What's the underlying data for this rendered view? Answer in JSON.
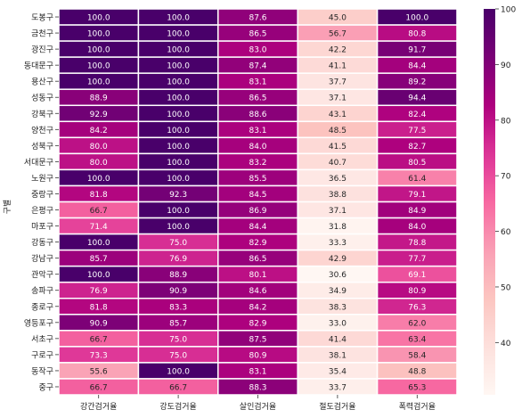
{
  "chart_data": {
    "type": "heatmap",
    "title": "",
    "xlabel": "",
    "ylabel": "구별",
    "columns": [
      "강간검거율",
      "강도검거율",
      "살인검거율",
      "절도검거율",
      "폭력검거율"
    ],
    "rows": [
      "도봉구",
      "금천구",
      "광진구",
      "동대문구",
      "용산구",
      "성동구",
      "강북구",
      "양천구",
      "성북구",
      "서대문구",
      "노원구",
      "중랑구",
      "은평구",
      "마포구",
      "강동구",
      "강남구",
      "관악구",
      "송파구",
      "종로구",
      "영등포구",
      "서초구",
      "구로구",
      "동작구",
      "중구"
    ],
    "values": [
      [
        100.0,
        100.0,
        87.6,
        45.0,
        100.0
      ],
      [
        100.0,
        100.0,
        86.5,
        56.7,
        80.8
      ],
      [
        100.0,
        100.0,
        83.0,
        42.2,
        91.7
      ],
      [
        100.0,
        100.0,
        87.4,
        41.1,
        84.4
      ],
      [
        100.0,
        100.0,
        83.1,
        37.7,
        89.2
      ],
      [
        88.9,
        100.0,
        86.5,
        37.1,
        94.4
      ],
      [
        92.9,
        100.0,
        88.6,
        43.1,
        82.4
      ],
      [
        84.2,
        100.0,
        83.1,
        48.5,
        77.5
      ],
      [
        80.0,
        100.0,
        84.0,
        41.5,
        82.7
      ],
      [
        80.0,
        100.0,
        83.2,
        40.7,
        80.5
      ],
      [
        100.0,
        100.0,
        85.5,
        36.5,
        61.4
      ],
      [
        81.8,
        92.3,
        84.5,
        38.8,
        79.1
      ],
      [
        66.7,
        100.0,
        86.9,
        37.1,
        84.9
      ],
      [
        71.4,
        100.0,
        84.4,
        31.8,
        84.0
      ],
      [
        100.0,
        75.0,
        82.9,
        33.3,
        78.8
      ],
      [
        85.7,
        76.9,
        86.5,
        42.9,
        77.7
      ],
      [
        100.0,
        88.9,
        80.1,
        30.6,
        69.1
      ],
      [
        76.9,
        90.9,
        84.6,
        34.9,
        80.9
      ],
      [
        81.8,
        83.3,
        84.2,
        38.3,
        76.3
      ],
      [
        90.9,
        85.7,
        82.9,
        33.0,
        62.0
      ],
      [
        66.7,
        75.0,
        87.5,
        41.4,
        63.4
      ],
      [
        73.3,
        75.0,
        80.9,
        38.1,
        58.4
      ],
      [
        55.6,
        100.0,
        83.1,
        35.4,
        48.8
      ],
      [
        66.7,
        66.7,
        88.3,
        33.7,
        65.3
      ]
    ],
    "value_format": "0.0",
    "colormap": "RdPu",
    "vmin": 30.6,
    "vmax": 100.0,
    "colorbar_ticks": [
      40,
      50,
      60,
      70,
      80,
      90,
      100
    ],
    "grid": false,
    "cell_border_color": "#ffffff"
  }
}
